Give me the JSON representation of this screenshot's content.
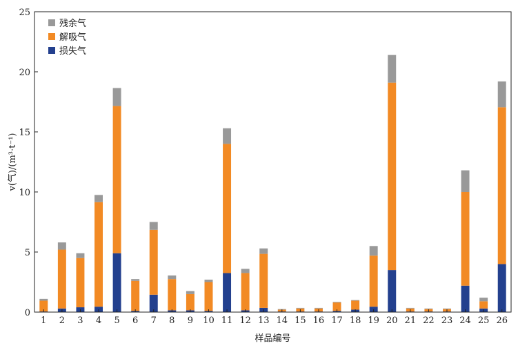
{
  "chart_data": {
    "type": "bar",
    "stacked": true,
    "title": "",
    "xlabel": "样品编号",
    "ylabel": "v(气)/(m³·t⁻¹)",
    "ylim": [
      0,
      25
    ],
    "yticks": [
      0,
      5,
      10,
      15,
      20,
      25
    ],
    "grid": false,
    "legend_position": "top-left",
    "categories": [
      "1",
      "2",
      "3",
      "4",
      "5",
      "6",
      "7",
      "8",
      "9",
      "10",
      "11",
      "12",
      "13",
      "14",
      "15",
      "16",
      "17",
      "18",
      "19",
      "20",
      "21",
      "22",
      "23",
      "24",
      "25",
      "26"
    ],
    "series": [
      {
        "name": "损失气",
        "color": "#23408e",
        "values": [
          0.05,
          0.3,
          0.4,
          0.45,
          4.9,
          0.1,
          1.45,
          0.15,
          0.15,
          0.1,
          3.25,
          0.15,
          0.35,
          0.05,
          0.05,
          0.05,
          0.1,
          0.2,
          0.45,
          3.5,
          0.05,
          0.05,
          0.05,
          2.2,
          0.3,
          4.0
        ]
      },
      {
        "name": "解吸气",
        "color": "#f28a24",
        "values": [
          0.9,
          4.9,
          4.1,
          8.7,
          12.25,
          2.5,
          5.4,
          2.6,
          1.35,
          2.4,
          10.75,
          3.1,
          4.5,
          0.15,
          0.25,
          0.25,
          0.7,
          0.75,
          4.25,
          15.6,
          0.25,
          0.2,
          0.2,
          7.8,
          0.6,
          13.05
        ]
      },
      {
        "name": "残余气",
        "color": "#999999",
        "values": [
          0.15,
          0.6,
          0.4,
          0.6,
          1.5,
          0.15,
          0.65,
          0.3,
          0.25,
          0.2,
          1.3,
          0.35,
          0.45,
          0.05,
          0.05,
          0.05,
          0.05,
          0.05,
          0.8,
          2.3,
          0.05,
          0.05,
          0.05,
          1.8,
          0.3,
          2.15
        ]
      }
    ]
  }
}
